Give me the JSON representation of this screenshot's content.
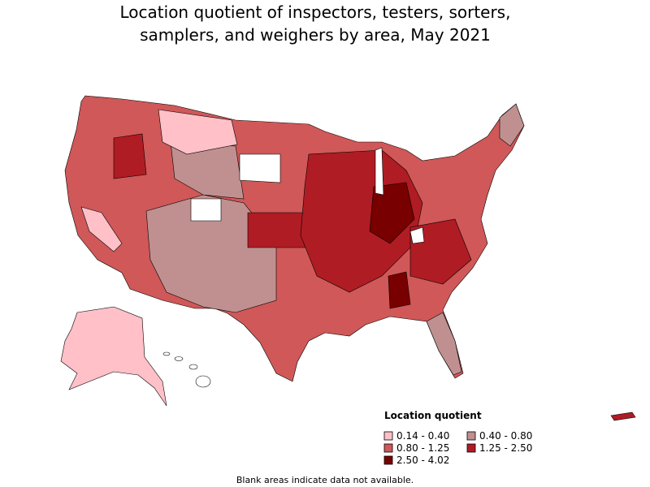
{
  "title_lines": [
    "Location quotient of inspectors, testers, sorters,",
    "samplers, and weighers by area, May 2021"
  ],
  "legend": {
    "title": "Location quotient",
    "items": [
      {
        "label": "0.14 - 0.40",
        "color": "#ffc0c8"
      },
      {
        "label": "0.40 - 0.80",
        "color": "#c09090"
      },
      {
        "label": "0.80 - 1.25",
        "color": "#d05858"
      },
      {
        "label": "1.25 - 2.50",
        "color": "#b01c24"
      },
      {
        "label": "2.50 - 4.02",
        "color": "#780000"
      }
    ]
  },
  "note": "Blank areas indicate data not available."
}
